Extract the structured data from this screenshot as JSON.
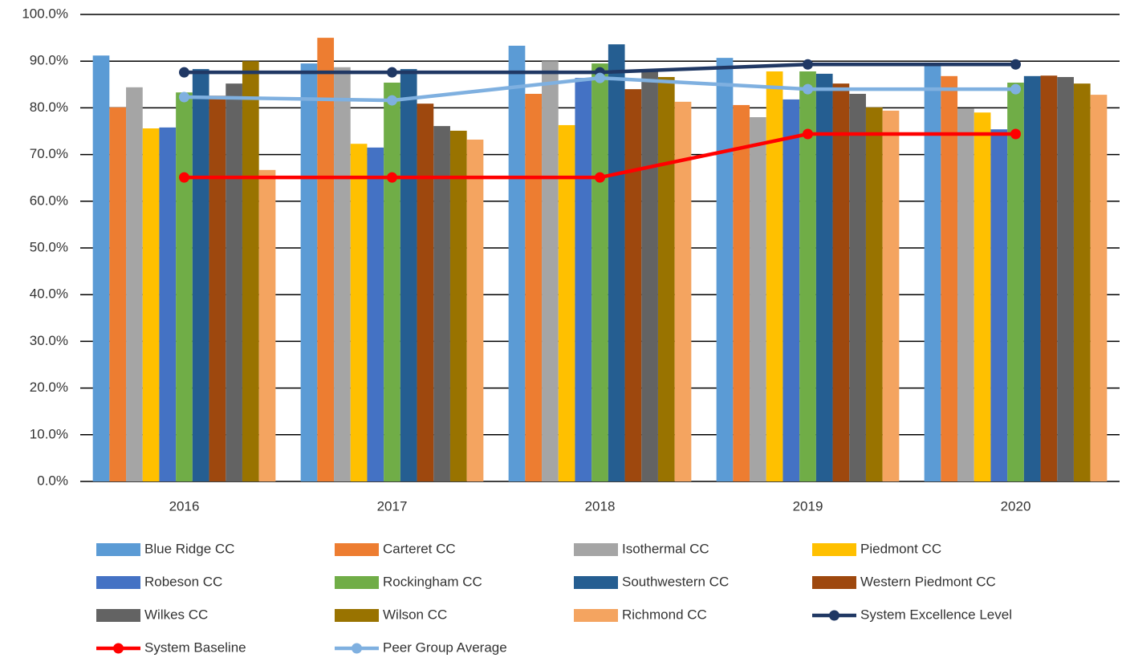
{
  "chart_data": {
    "type": "bar",
    "categories": [
      "2016",
      "2017",
      "2018",
      "2019",
      "2020"
    ],
    "ylim": [
      0,
      100
    ],
    "yticks": [
      {
        "value": 0,
        "label": "0.0%"
      },
      {
        "value": 10,
        "label": "10.0%"
      },
      {
        "value": 20,
        "label": "20.0%"
      },
      {
        "value": 30,
        "label": "30.0%"
      },
      {
        "value": 40,
        "label": "40.0%"
      },
      {
        "value": 50,
        "label": "50.0%"
      },
      {
        "value": 60,
        "label": "60.0%"
      },
      {
        "value": 70,
        "label": "70.0%"
      },
      {
        "value": 80,
        "label": "80.0%"
      },
      {
        "value": 90,
        "label": "90.0%"
      },
      {
        "value": 100,
        "label": "100.0%"
      }
    ],
    "grid": true,
    "legend": "bottom",
    "series": [
      {
        "name": "Blue Ridge CC",
        "color": "#5b9bd5",
        "type": "bar",
        "values": [
          91.2,
          89.5,
          93.3,
          90.7,
          89.7
        ]
      },
      {
        "name": "Carteret CC",
        "color": "#ed7d31",
        "type": "bar",
        "values": [
          80.1,
          95.0,
          83.0,
          80.6,
          86.8
        ]
      },
      {
        "name": "Isothermal CC",
        "color": "#a5a5a5",
        "type": "bar",
        "values": [
          84.4,
          88.7,
          90.0,
          78.0,
          79.9
        ]
      },
      {
        "name": "Piedmont CC",
        "color": "#ffc000",
        "type": "bar",
        "values": [
          75.6,
          72.3,
          76.3,
          87.8,
          79.0
        ]
      },
      {
        "name": "Robeson CC",
        "color": "#4472c4",
        "type": "bar",
        "values": [
          75.8,
          71.5,
          86.4,
          81.8,
          75.4
        ]
      },
      {
        "name": "Rockingham CC",
        "color": "#70ad47",
        "type": "bar",
        "values": [
          83.3,
          85.4,
          89.5,
          87.8,
          85.4
        ]
      },
      {
        "name": "Southwestern CC",
        "color": "#255e91",
        "type": "bar",
        "values": [
          88.3,
          88.3,
          93.6,
          87.3,
          86.8
        ]
      },
      {
        "name": "Western Piedmont CC",
        "color": "#9e480e",
        "type": "bar",
        "values": [
          82.6,
          80.9,
          84.0,
          85.2,
          86.9
        ]
      },
      {
        "name": "Wilkes CC",
        "color": "#636363",
        "type": "bar",
        "values": [
          85.2,
          76.1,
          88.0,
          83.0,
          86.6
        ]
      },
      {
        "name": "Wilson CC",
        "color": "#997300",
        "type": "bar",
        "values": [
          90.0,
          75.1,
          86.6,
          80.1,
          85.2
        ]
      },
      {
        "name": "Richmond CC",
        "color": "#f4a460",
        "type": "bar",
        "values": [
          66.7,
          73.2,
          81.3,
          79.4,
          82.8
        ]
      },
      {
        "name": "System Excellence Level",
        "color": "#203864",
        "type": "line",
        "values": [
          87.6,
          87.6,
          87.6,
          89.3,
          89.3
        ]
      },
      {
        "name": "System Baseline",
        "color": "#ff0000",
        "type": "line",
        "values": [
          65.1,
          65.1,
          65.1,
          74.4,
          74.4
        ]
      },
      {
        "name": "Peer Group Average",
        "color": "#7fb0e0",
        "type": "line",
        "values": [
          82.3,
          81.6,
          86.4,
          84.0,
          84.0
        ]
      }
    ]
  }
}
